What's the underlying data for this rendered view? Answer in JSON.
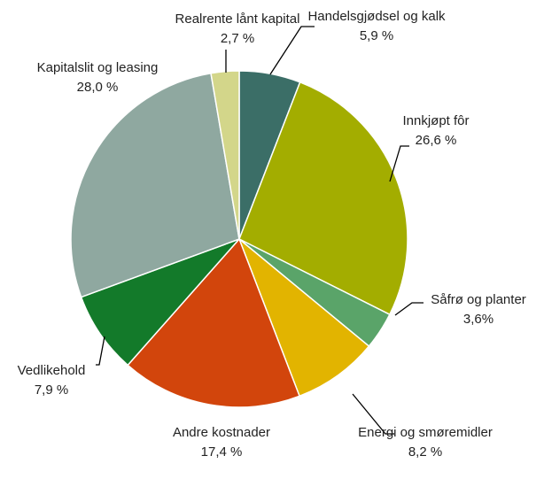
{
  "chart_data": {
    "type": "pie",
    "categories": [
      "Handelsgjødsel og kalk",
      "Innkjøpt fôr",
      "Såfrø og planter",
      "Energi og smøremidler",
      "Andre kostnader",
      "Vedlikehold",
      "Kapitalslit og leasing",
      "Realrente lånt kapital"
    ],
    "values": [
      5.9,
      26.6,
      3.6,
      8.2,
      17.4,
      7.9,
      28.0,
      2.7
    ],
    "value_labels": [
      "5,9 %",
      "26,6 %",
      "3,6%",
      "8,2 %",
      "17,4 %",
      "7,9 %",
      "28,0 %",
      "2,7 %"
    ],
    "colors": [
      "#3b6e67",
      "#a3ad00",
      "#5aa469",
      "#e2b400",
      "#d2450c",
      "#137a2a",
      "#8fa8a0",
      "#d3d68a"
    ]
  }
}
